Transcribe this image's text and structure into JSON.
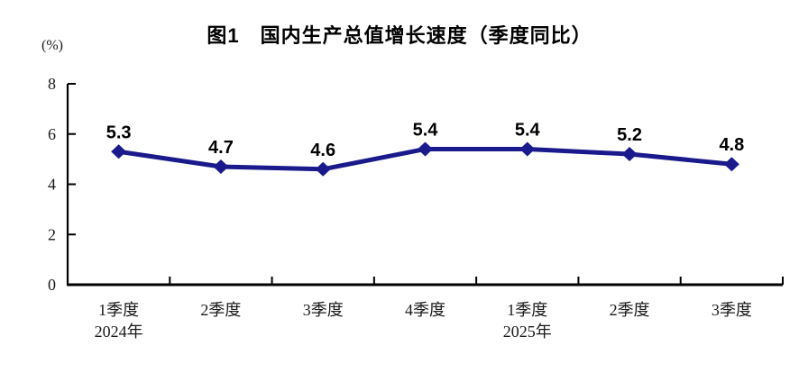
{
  "title": "图1　国内生产总值增长速度（季度同比）",
  "unit_label": "(%)",
  "colors": {
    "line": "#1a1a8c",
    "marker": "#1a1a8c",
    "axis": "#000000",
    "tick_text": "#1a1a1a",
    "value_label": "#000000",
    "background": "#ffffff"
  },
  "chart_data": {
    "type": "line",
    "title": "图1　国内生产总值增长速度（季度同比）",
    "ylabel": "(%)",
    "xlabel": "",
    "categories": [
      "1季度",
      "2季度",
      "3季度",
      "4季度",
      "1季度",
      "2季度",
      "3季度"
    ],
    "category_sublabels": [
      "2024年",
      "",
      "",
      "",
      "2025年",
      "",
      ""
    ],
    "values": [
      5.3,
      4.7,
      4.6,
      5.4,
      5.4,
      5.2,
      4.8
    ],
    "value_labels": [
      "5.3",
      "4.7",
      "4.6",
      "5.4",
      "5.4",
      "5.2",
      "4.8"
    ],
    "ylim": [
      0,
      8
    ],
    "yticks": [
      0,
      2,
      4,
      6,
      8
    ],
    "grid": false,
    "legend_position": "none",
    "marker": "diamond",
    "line_color": "#1a1a8c"
  }
}
